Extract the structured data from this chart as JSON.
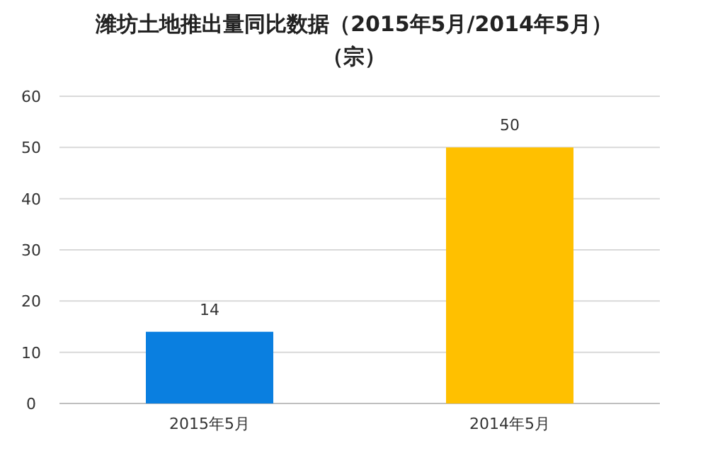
{
  "chart_data": {
    "type": "bar",
    "title": "潍坊土地推出量同比数据（2015年5月/2014年5月）",
    "subtitle": "（宗）",
    "categories": [
      "2015年5月",
      "2014年5月"
    ],
    "values": [
      14,
      50
    ],
    "colors": [
      "#0a7fe0",
      "#ffc000"
    ],
    "ylim": [
      0,
      60
    ],
    "yticks": [
      0,
      10,
      20,
      30,
      40,
      50,
      60
    ],
    "grid": "y",
    "data_labels": true
  }
}
